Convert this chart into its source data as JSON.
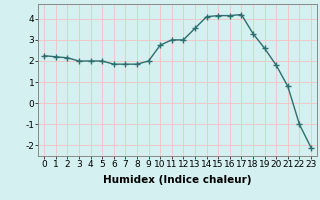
{
  "x": [
    0,
    1,
    2,
    3,
    4,
    5,
    6,
    7,
    8,
    9,
    10,
    11,
    12,
    13,
    14,
    15,
    16,
    17,
    18,
    19,
    20,
    21,
    22,
    23
  ],
  "y": [
    2.25,
    2.2,
    2.15,
    2.0,
    2.0,
    2.0,
    1.85,
    1.85,
    1.85,
    2.0,
    2.75,
    3.0,
    3.0,
    3.55,
    4.1,
    4.15,
    4.15,
    4.2,
    3.3,
    2.6,
    1.8,
    0.8,
    -1.0,
    -2.1
  ],
  "line_color": "#2e6e6e",
  "marker": "+",
  "markersize": 4,
  "linewidth": 1.0,
  "markeredgewidth": 1.0,
  "xlabel": "Humidex (Indice chaleur)",
  "xlim": [
    -0.5,
    23.5
  ],
  "ylim": [
    -2.5,
    4.7
  ],
  "yticks": [
    -2,
    -1,
    0,
    1,
    2,
    3,
    4
  ],
  "xticks": [
    0,
    1,
    2,
    3,
    4,
    5,
    6,
    7,
    8,
    9,
    10,
    11,
    12,
    13,
    14,
    15,
    16,
    17,
    18,
    19,
    20,
    21,
    22,
    23
  ],
  "bg_color": "#d4f0f0",
  "grid_color": "#f0c8c8",
  "xlabel_fontsize": 7.5,
  "tick_fontsize": 6.5,
  "spine_color": "#888888"
}
